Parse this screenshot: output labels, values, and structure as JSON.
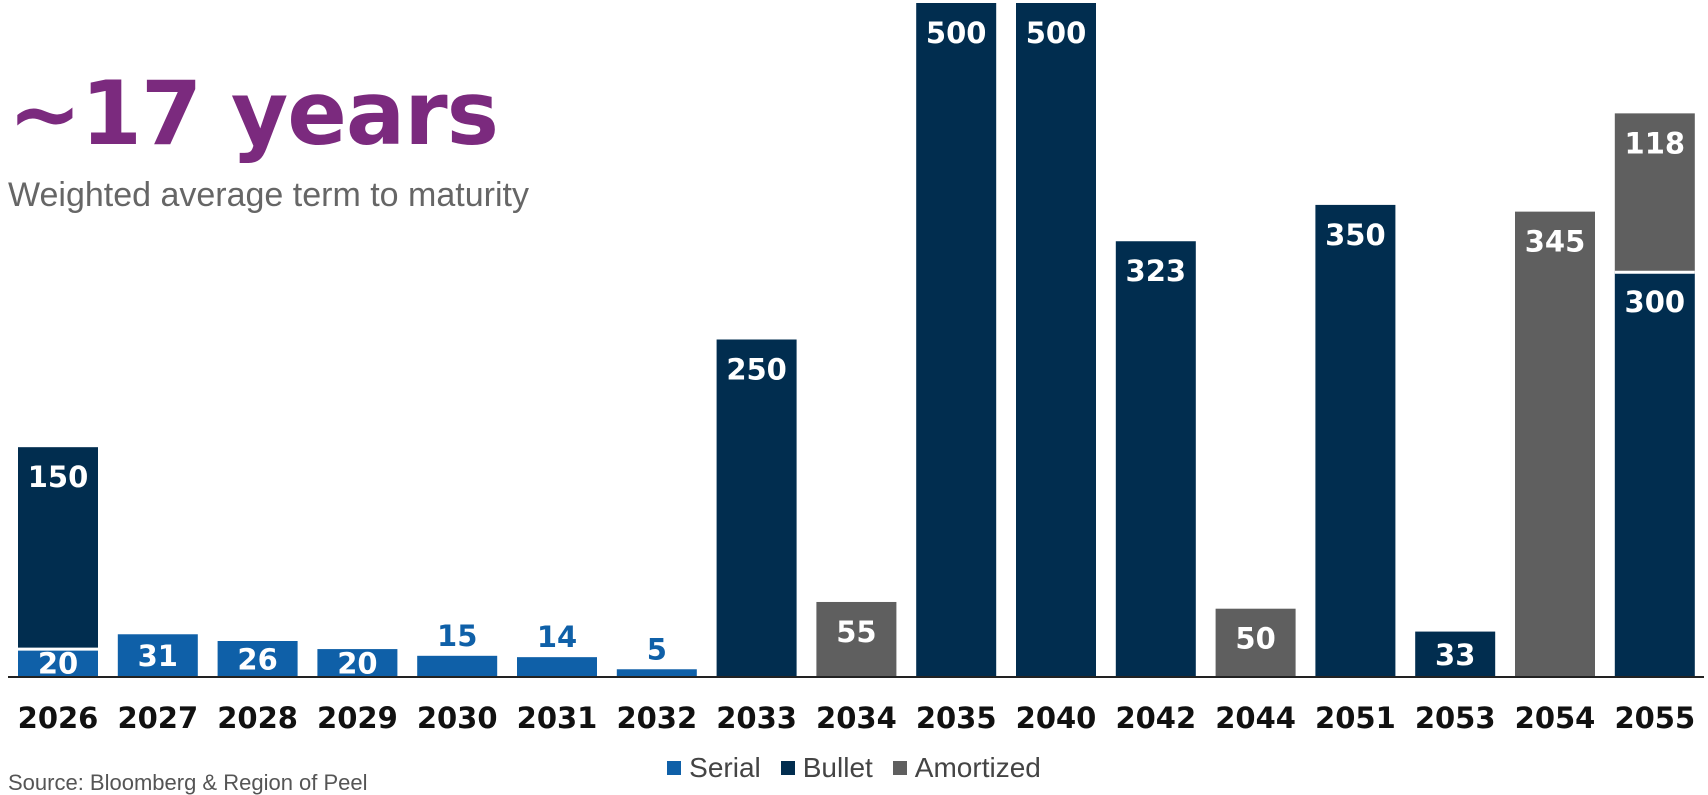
{
  "headline": "~17 years",
  "subheadline": "Weighted average term to maturity",
  "source_text": "Source: Bloomberg & Region of Peel",
  "colors": {
    "serial": "#0f60a8",
    "bullet": "#012d4f",
    "amortized": "#5f5f5f",
    "headline": "#7b2a7e"
  },
  "chart_data": {
    "type": "bar",
    "stacked": true,
    "categories": [
      "2026",
      "2027",
      "2028",
      "2029",
      "2030",
      "2031",
      "2032",
      "2033",
      "2034",
      "2035",
      "2040",
      "2042",
      "2044",
      "2051",
      "2053",
      "2054",
      "2055"
    ],
    "series": [
      {
        "name": "Serial",
        "values": [
          20,
          31,
          26,
          20,
          15,
          14,
          5,
          0,
          0,
          0,
          0,
          0,
          0,
          0,
          0,
          0,
          0
        ]
      },
      {
        "name": "Bullet",
        "values": [
          150,
          0,
          0,
          0,
          0,
          0,
          0,
          250,
          0,
          500,
          500,
          323,
          0,
          350,
          33,
          0,
          300
        ]
      },
      {
        "name": "Amortized",
        "values": [
          0,
          0,
          0,
          0,
          0,
          0,
          0,
          0,
          55,
          0,
          0,
          0,
          50,
          0,
          0,
          345,
          118
        ]
      }
    ],
    "legend_position": "bottom-center",
    "grid": false
  }
}
